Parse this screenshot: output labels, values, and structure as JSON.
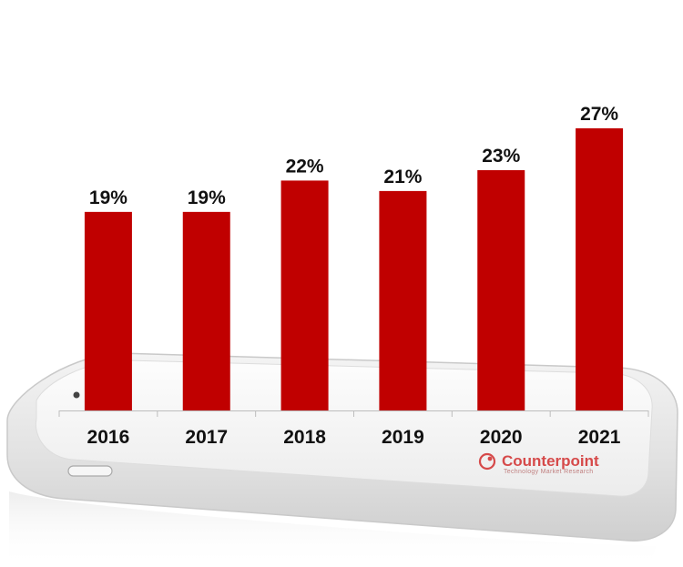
{
  "chart_data": {
    "type": "bar",
    "categories": [
      "2016",
      "2017",
      "2018",
      "2019",
      "2020",
      "2021"
    ],
    "values": [
      19,
      19,
      22,
      21,
      23,
      27
    ],
    "value_labels": [
      "19%",
      "19%",
      "22%",
      "21%",
      "23%",
      "27%"
    ],
    "title": "",
    "xlabel": "",
    "ylabel": "",
    "ylim": [
      0,
      27
    ],
    "grid": false,
    "bar_color": "#c00000"
  },
  "branding": {
    "name": "Counterpoint",
    "tagline": "Technology Market Research",
    "color": "#d64a4a"
  }
}
